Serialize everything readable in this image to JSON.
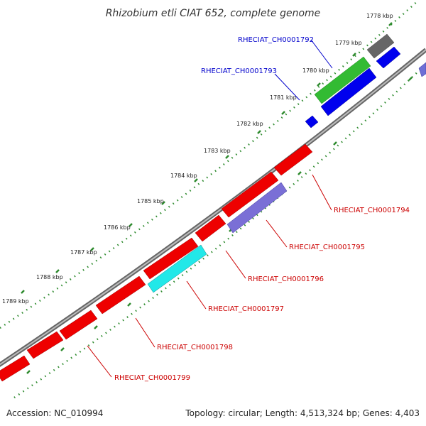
{
  "title": "Rhizobium etli CIAT 652, complete genome",
  "footer": {
    "accession": "Accession: NC_010994",
    "summary": "Topology: circular; Length: 4,513,324 bp; Genes: 4,403"
  },
  "ticks": [
    {
      "label": "1778 kbp"
    },
    {
      "label": "1779 kbp"
    },
    {
      "label": "1780 kbp"
    },
    {
      "label": "1781 kbp"
    },
    {
      "label": "1782 kbp"
    },
    {
      "label": "1783 kbp"
    },
    {
      "label": "1784 kbp"
    },
    {
      "label": "1785 kbp"
    },
    {
      "label": "1786 kbp"
    },
    {
      "label": "1787 kbp"
    },
    {
      "label": "1788 kbp"
    },
    {
      "label": "1789 kbp"
    }
  ],
  "gene_labels": [
    {
      "label": "RHECIAT_CH0001792",
      "color": "#0000cc"
    },
    {
      "label": "RHECIAT_CH0001793",
      "color": "#0000cc"
    },
    {
      "label": "RHECIAT_CH0001794",
      "color": "#cc0000"
    },
    {
      "label": "RHECIAT_CH0001795",
      "color": "#cc0000"
    },
    {
      "label": "RHECIAT_CH0001796",
      "color": "#cc0000"
    },
    {
      "label": "RHECIAT_CH0001797",
      "color": "#cc0000"
    },
    {
      "label": "RHECIAT_CH0001798",
      "color": "#cc0000"
    },
    {
      "label": "RHECIAT_CH0001799",
      "color": "#cc0000"
    }
  ],
  "colors": {
    "backbone": "#8a8a8a",
    "tick_dots": "#2e8b2e",
    "gene_red": "#ee0000",
    "gene_blue": "#0000ee",
    "gene_green": "#33bb33",
    "gene_gray": "#666666",
    "gene_purple": "#7a6fd6",
    "gene_cyan": "#22e8e8"
  }
}
